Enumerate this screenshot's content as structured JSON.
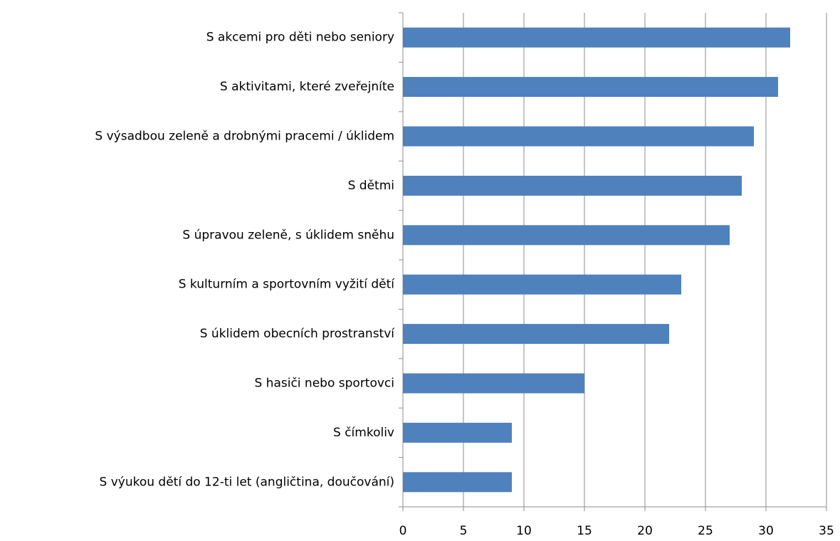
{
  "chart_data": {
    "type": "hbar",
    "categories": [
      "S akcemi pro děti nebo seniory",
      "S aktivitami, které zveřejníte",
      "S výsadbou zeleně a drobnými pracemi / úklidem",
      "S dětmi",
      "S úpravou zeleně, s úklidem sněhu",
      "S kulturním a sportovním vyžití dětí",
      "S úklidem obecních prostranství",
      "S hasiči nebo sportovci",
      "S čímkoliv",
      "S výukou dětí do 12-ti let (angličtina, doučování)"
    ],
    "values": [
      32,
      31,
      29,
      28,
      27,
      23,
      22,
      15,
      9,
      9
    ],
    "color": "#4f81bd",
    "xlim": [
      0,
      35
    ],
    "xticks": [
      0,
      5,
      10,
      15,
      20,
      25,
      30,
      35
    ],
    "grid": true
  }
}
